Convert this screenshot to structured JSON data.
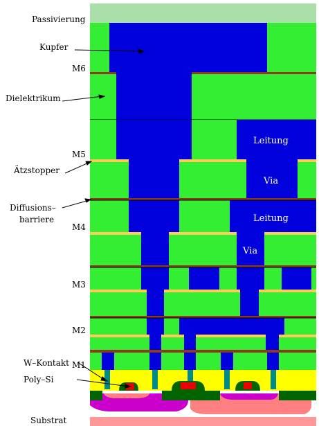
{
  "labels": {
    "passivation": "Passivierung",
    "copper": "Kupfer",
    "dielectric": "Dielektrikum",
    "etch_stop": "Ätzstopper",
    "diffusion_barrier_1": "Diffusions–",
    "diffusion_barrier_2": "barriere",
    "w_contact": "W–Kontakt",
    "poly_si": "Poly–Si",
    "substrate": "Substrat"
  },
  "metal_levels": [
    "M6",
    "M5",
    "M4",
    "M3",
    "M2",
    "M1"
  ],
  "inline_labels": {
    "line_upper": "Leitung",
    "via_upper": "Via",
    "line_lower": "Leitung",
    "via_lower": "Via"
  },
  "colors": {
    "passivation": "#aadfaa",
    "dielectric": "#33ee33",
    "copper": "#0000dd",
    "etch_stop": "#ffcc55",
    "barrier": "#8b3a1a",
    "contact_layer": "#ffff00",
    "w_contact": "#008b8b",
    "poly_si": "#ee0000",
    "gate_oxide": "#006400",
    "well": "#cc00cc",
    "diffusion": "#ff8080",
    "substrate": "#ff9999"
  }
}
